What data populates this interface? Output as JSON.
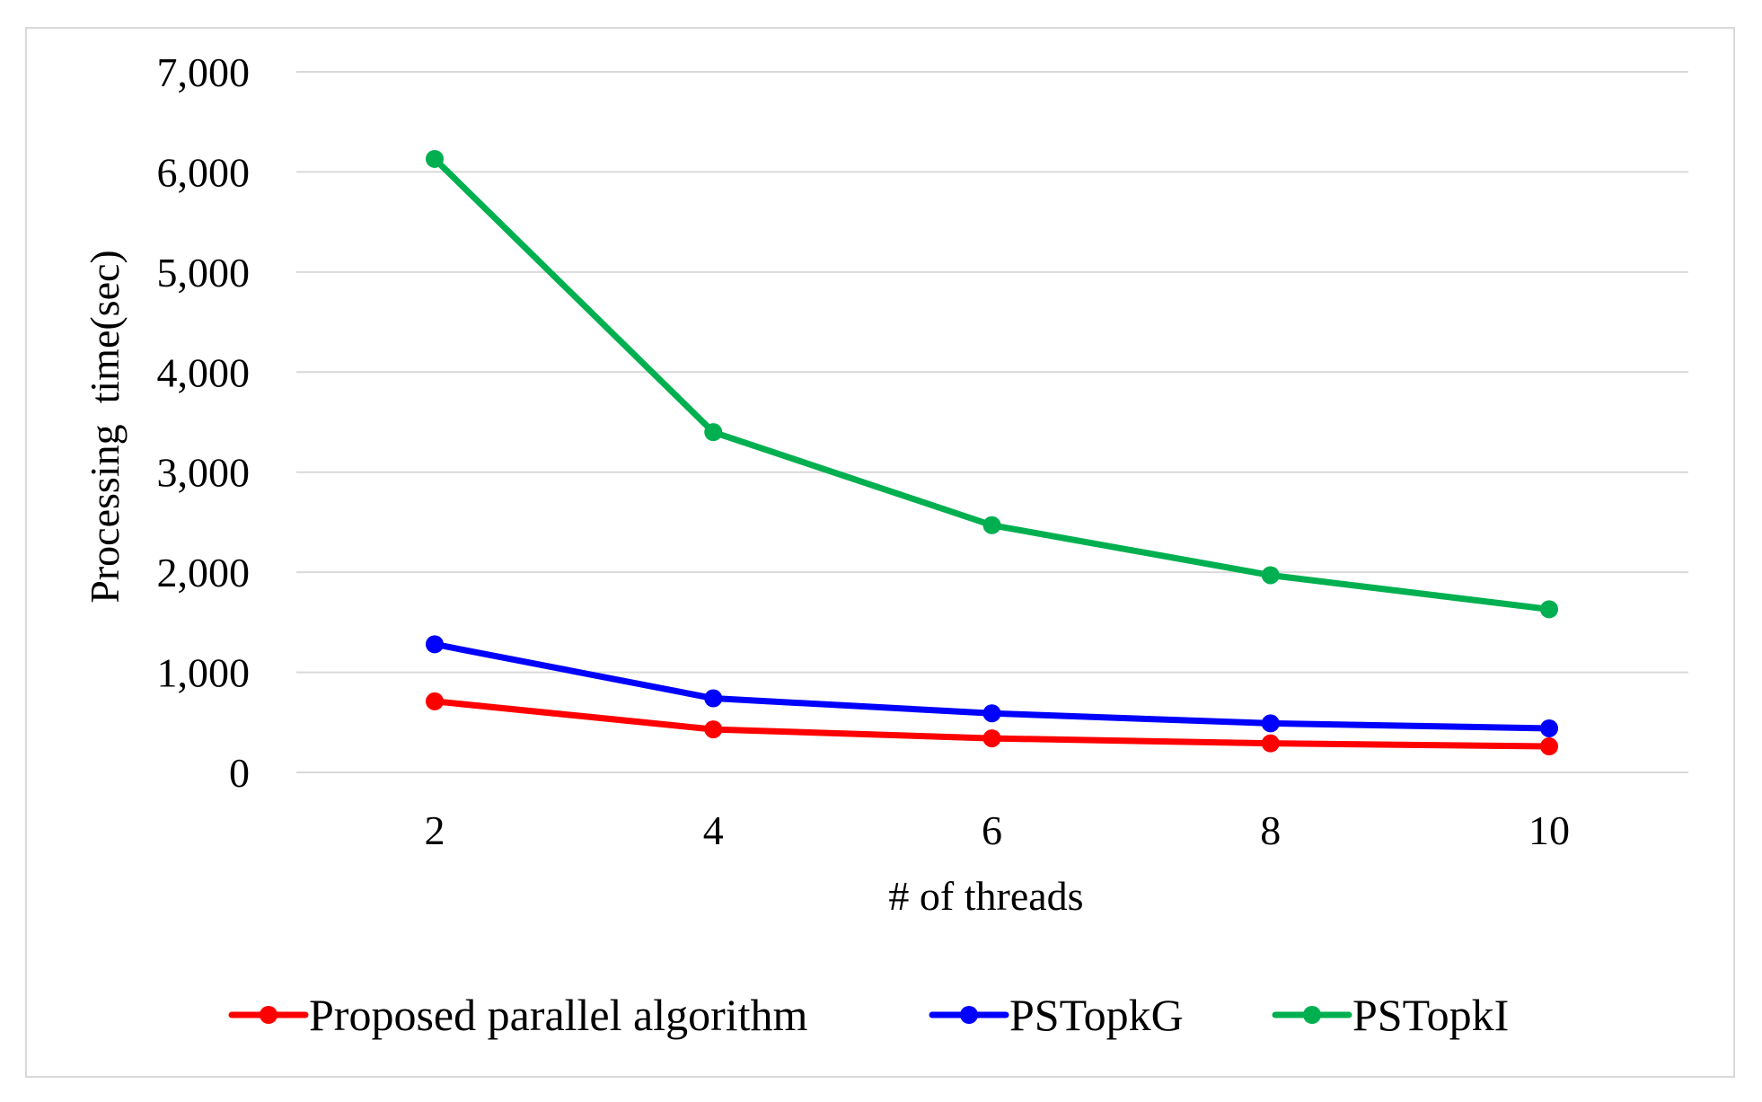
{
  "chart_data": {
    "type": "line",
    "title": "",
    "xlabel": "# of threads",
    "ylabel": "Processing  time(sec)",
    "x": [
      2,
      4,
      6,
      8,
      10
    ],
    "x_tick_labels": [
      "2",
      "4",
      "6",
      "8",
      "10"
    ],
    "ylim": [
      0,
      7000
    ],
    "y_ticks": [
      0,
      1000,
      2000,
      3000,
      4000,
      5000,
      6000,
      7000
    ],
    "y_tick_labels": [
      "0",
      "1,000",
      "2,000",
      "3,000",
      "4,000",
      "5,000",
      "6,000",
      "7,000"
    ],
    "grid": true,
    "legend_position": "bottom",
    "series": [
      {
        "name": "Proposed parallel algorithm",
        "color": "#ff0000",
        "values": [
          710,
          430,
          340,
          290,
          260
        ]
      },
      {
        "name": "PSTopkG",
        "color": "#0000ff",
        "values": [
          1280,
          740,
          590,
          490,
          440
        ]
      },
      {
        "name": "PSTopkI",
        "color": "#00b050",
        "values": [
          6130,
          3400,
          2470,
          1970,
          1630
        ]
      }
    ]
  }
}
